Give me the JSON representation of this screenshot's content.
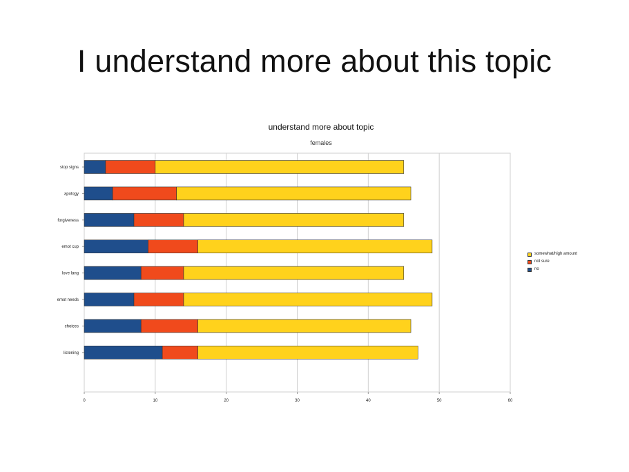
{
  "slide": {
    "title": "I understand more about this topic"
  },
  "chart_data": {
    "type": "bar",
    "orientation": "horizontal",
    "stacked": true,
    "title": "understand more about topic",
    "subtitle": "females",
    "categories": [
      "stop signs",
      "apology",
      "forgiveness",
      "emot cup",
      "love lang",
      "emot needs",
      "choices",
      "listening"
    ],
    "series": [
      {
        "name": "no",
        "color": "#1f4e8c",
        "values": [
          3,
          4,
          7,
          9,
          8,
          7,
          8,
          11
        ]
      },
      {
        "name": "not sure",
        "color": "#f04a1c",
        "values": [
          7,
          9,
          7,
          7,
          6,
          7,
          8,
          5
        ]
      },
      {
        "name": "somewhat/high amount",
        "color": "#ffd21c",
        "values": [
          35,
          33,
          31,
          33,
          31,
          35,
          30,
          31
        ]
      }
    ],
    "xlim": [
      0,
      60
    ],
    "xticks": [
      0,
      10,
      20,
      30,
      40,
      50,
      60
    ],
    "grid": true,
    "legend_position": "right",
    "legend_order": [
      "somewhat/high amount",
      "not sure",
      "no"
    ]
  }
}
